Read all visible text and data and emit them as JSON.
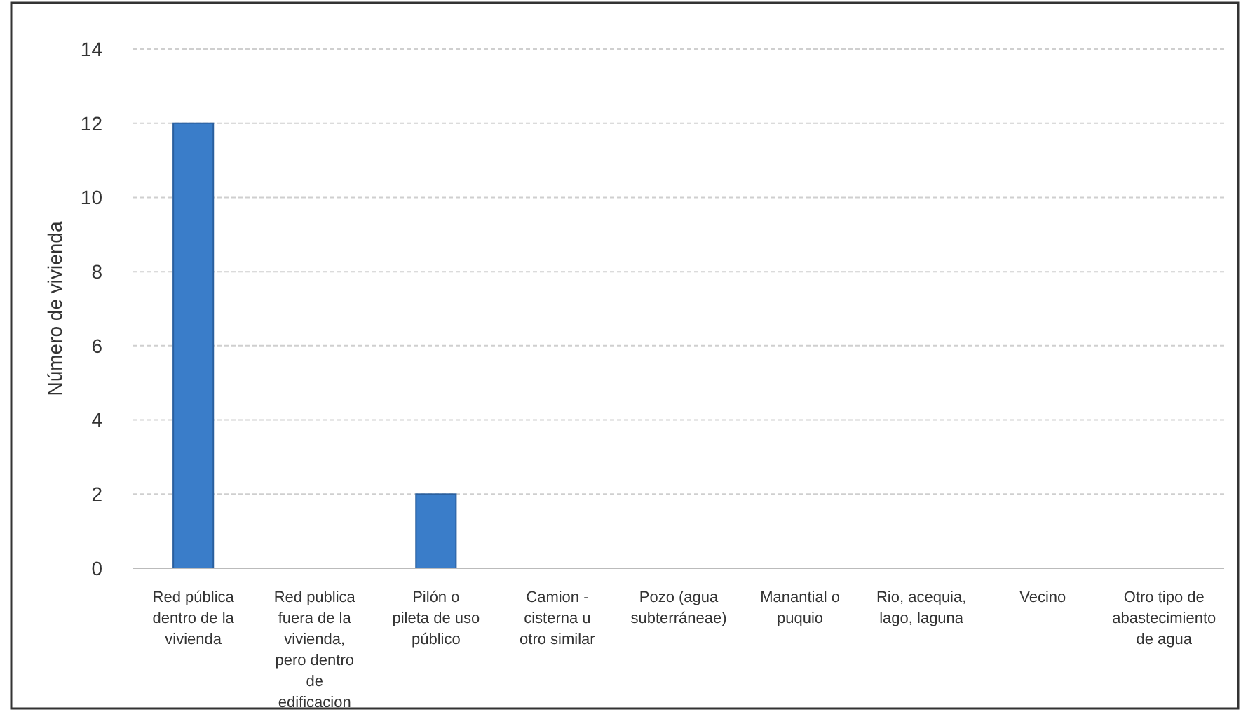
{
  "chart_data": {
    "type": "bar",
    "ylabel": "Número de vivienda",
    "categories": [
      "Red pública dentro de la vivienda",
      "Red publica fuera de la vivienda, pero dentro de edificacion",
      "Pilón o pileta de uso público",
      "Camion - cisterna u otro similar",
      "Pozo (agua subterráneae)",
      "Manantial o puquio",
      "Rio, acequia, lago, laguna",
      "Vecino",
      "Otro tipo de abastecimiento de agua"
    ],
    "values": [
      12,
      0,
      2,
      0,
      0,
      0,
      0,
      0,
      0
    ],
    "color": "#3a7dc9",
    "ylim": [
      0,
      14
    ],
    "yticks": [
      0,
      2,
      4,
      6,
      8,
      10,
      12,
      14
    ],
    "grid": "y"
  }
}
